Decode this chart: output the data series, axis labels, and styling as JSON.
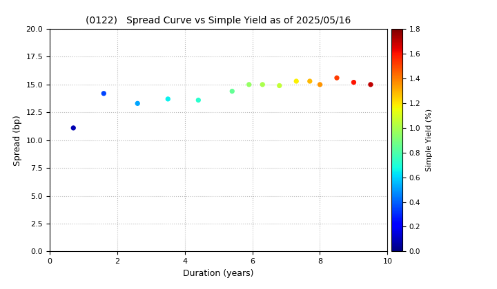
{
  "title": "(0122)   Spread Curve vs Simple Yield as of 2025/05/16",
  "xlabel": "Duration (years)",
  "ylabel": "Spread (bp)",
  "colorbar_label": "Simple Yield (%)",
  "xlim": [
    0,
    10
  ],
  "ylim": [
    0.0,
    20.0
  ],
  "yticks": [
    0.0,
    2.5,
    5.0,
    7.5,
    10.0,
    12.5,
    15.0,
    17.5,
    20.0
  ],
  "xticks": [
    0,
    2,
    4,
    6,
    8,
    10
  ],
  "colorbar_range": [
    0.0,
    1.8
  ],
  "colorbar_ticks": [
    0.0,
    0.2,
    0.4,
    0.6,
    0.8,
    1.0,
    1.2,
    1.4,
    1.6,
    1.8
  ],
  "cmap": "jet",
  "points": [
    {
      "duration": 0.7,
      "spread": 11.1,
      "simple_yield": 0.08
    },
    {
      "duration": 1.6,
      "spread": 14.2,
      "simple_yield": 0.35
    },
    {
      "duration": 2.6,
      "spread": 13.3,
      "simple_yield": 0.52
    },
    {
      "duration": 3.5,
      "spread": 13.7,
      "simple_yield": 0.65
    },
    {
      "duration": 4.4,
      "spread": 13.6,
      "simple_yield": 0.72
    },
    {
      "duration": 5.4,
      "spread": 14.4,
      "simple_yield": 0.85
    },
    {
      "duration": 5.9,
      "spread": 15.0,
      "simple_yield": 0.95
    },
    {
      "duration": 6.3,
      "spread": 15.0,
      "simple_yield": 1.0
    },
    {
      "duration": 6.8,
      "spread": 14.9,
      "simple_yield": 1.05
    },
    {
      "duration": 7.3,
      "spread": 15.3,
      "simple_yield": 1.18
    },
    {
      "duration": 7.7,
      "spread": 15.3,
      "simple_yield": 1.28
    },
    {
      "duration": 8.0,
      "spread": 15.0,
      "simple_yield": 1.35
    },
    {
      "duration": 8.5,
      "spread": 15.6,
      "simple_yield": 1.52
    },
    {
      "duration": 9.0,
      "spread": 15.2,
      "simple_yield": 1.6
    },
    {
      "duration": 9.5,
      "spread": 15.0,
      "simple_yield": 1.7
    }
  ],
  "marker_size": 18,
  "background_color": "#ffffff",
  "grid_color": "#bbbbbb",
  "grid_linestyle": ":"
}
